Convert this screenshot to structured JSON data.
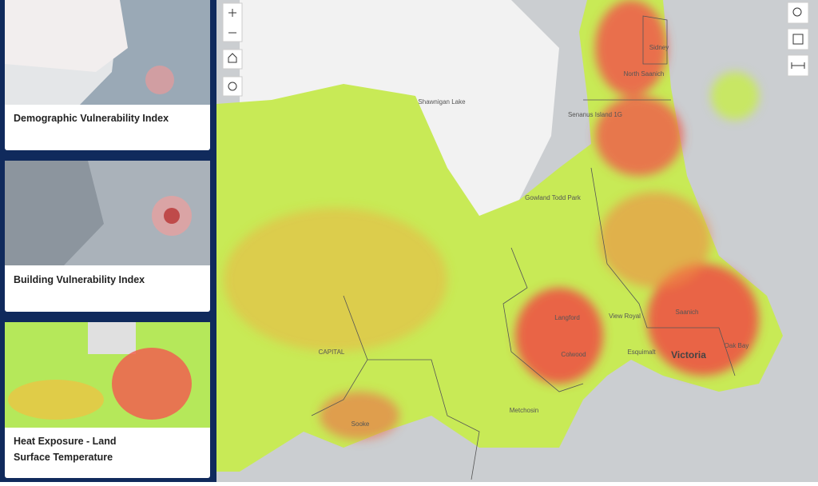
{
  "sidebar": {
    "cards": [
      {
        "title": "Demographic Vulnerability Index"
      },
      {
        "title": "Building Vulnerability Index"
      },
      {
        "title": "Heat Exposure - Land Surface Temperature"
      }
    ]
  },
  "map": {
    "labels": [
      {
        "text": "Sidney"
      },
      {
        "text": "North Saanich"
      },
      {
        "text": "Senanus Island 1G"
      },
      {
        "text": "Shawnigan Lake"
      },
      {
        "text": "Gowland Todd Park"
      },
      {
        "text": "Langford"
      },
      {
        "text": "View Royal"
      },
      {
        "text": "Saanich"
      },
      {
        "text": "Colwood"
      },
      {
        "text": "Esquimalt"
      },
      {
        "text": "Victoria"
      },
      {
        "text": "Oak Bay"
      },
      {
        "text": "CAPITAL"
      },
      {
        "text": "Metchosin"
      },
      {
        "text": "Sooke"
      }
    ]
  }
}
